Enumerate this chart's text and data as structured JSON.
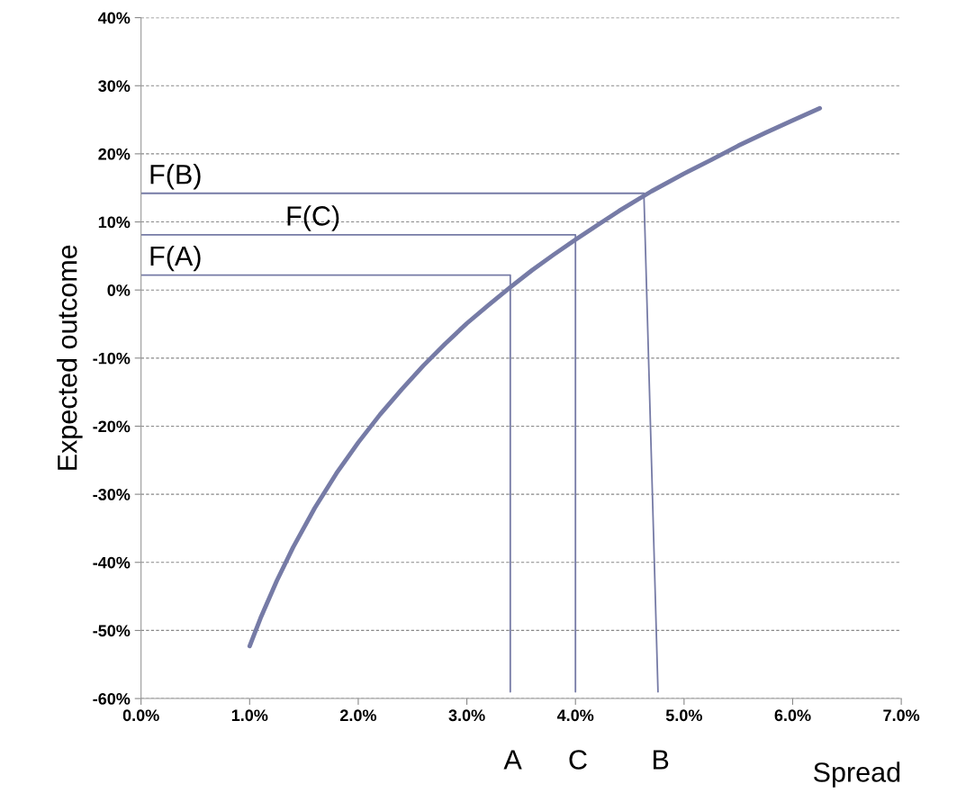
{
  "chart_data": {
    "type": "line",
    "xlabel": "Spread",
    "ylabel": "Expected outcome",
    "series": [
      {
        "color": "#767ba6",
        "x": [
          1.0,
          1.1,
          1.25,
          1.4,
          1.6,
          1.8,
          2.0,
          2.2,
          2.4,
          2.6,
          2.8,
          3.0,
          3.2,
          3.4,
          3.6,
          3.8,
          4.0,
          4.2,
          4.4,
          4.7,
          5.0,
          5.25,
          5.5,
          5.75,
          6.0,
          6.25
        ],
        "values": [
          -52.3,
          -48.2,
          -42.7,
          -37.8,
          -32.0,
          -26.9,
          -22.4,
          -18.3,
          -14.6,
          -11.1,
          -7.9,
          -4.9,
          -2.2,
          0.4,
          2.9,
          5.2,
          7.4,
          9.5,
          11.6,
          14.5,
          17.1,
          19.1,
          21.2,
          23.1,
          24.9,
          26.7
        ]
      },
      {
        "color": "#767ba6",
        "x": [
          0,
          3.4,
          3.4
        ],
        "values": [
          2.2,
          2.2,
          -59
        ]
      },
      {
        "color": "#767ba6",
        "x": [
          0,
          4.0,
          4.0
        ],
        "values": [
          8.1,
          8.1,
          -59
        ]
      },
      {
        "color": "#767ba6",
        "x": [
          0,
          4.63,
          4.76
        ],
        "values": [
          14.2,
          14.2,
          -59
        ]
      }
    ],
    "annotations": [
      {
        "text": "F(A)",
        "x": 0.07,
        "y": 2.2
      },
      {
        "text": "F(C)",
        "x": 1.33,
        "y": 8.1
      },
      {
        "text": "F(B)",
        "x": 0.07,
        "y": 14.2
      },
      {
        "text": "A",
        "x": 3.4,
        "y": -59
      },
      {
        "text": "C",
        "x": 4.0,
        "y": -59
      },
      {
        "text": "B",
        "x": 4.76,
        "y": -59
      }
    ],
    "xlim": [
      0,
      7
    ],
    "ylim": [
      -60,
      40
    ],
    "xticks": [
      {
        "value": 0,
        "label": "0.0%"
      },
      {
        "value": 1,
        "label": "1.0%"
      },
      {
        "value": 2,
        "label": "2.0%"
      },
      {
        "value": 3,
        "label": "3.0%"
      },
      {
        "value": 4,
        "label": "4.0%"
      },
      {
        "value": 5,
        "label": "5.0%"
      },
      {
        "value": 6,
        "label": "6.0%"
      },
      {
        "value": 7,
        "label": "7.0%"
      }
    ],
    "yticks": [
      {
        "value": -60,
        "label": "-60%"
      },
      {
        "value": -50,
        "label": "-50%"
      },
      {
        "value": -40,
        "label": "-40%"
      },
      {
        "value": -30,
        "label": "-30%"
      },
      {
        "value": -20,
        "label": "-20%"
      },
      {
        "value": -10,
        "label": "-10%"
      },
      {
        "value": 0,
        "label": "0%"
      },
      {
        "value": 10,
        "label": "10%"
      },
      {
        "value": 20,
        "label": "20%"
      },
      {
        "value": 30,
        "label": "30%"
      },
      {
        "value": 40,
        "label": "40%"
      }
    ],
    "grid": "y",
    "legend": false,
    "marker": "none",
    "line_style": "solid"
  }
}
